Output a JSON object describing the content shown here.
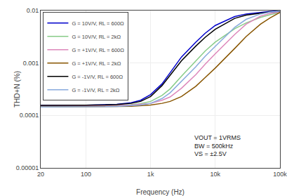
{
  "chart_data": {
    "type": "line",
    "title": "",
    "xlabel": "Frequency (Hz)",
    "ylabel": "THD+N (%)",
    "log": true,
    "grid": true,
    "legend": "upper left",
    "xlim": [
      20,
      100000
    ],
    "ylim": [
      1e-05,
      0.01
    ],
    "xticks": [
      20,
      100,
      {
        "value": 1000,
        "label": "1k"
      },
      {
        "value": 10000,
        "label": "10k"
      },
      {
        "value": 100000,
        "label": "100k"
      }
    ],
    "yticks": [
      1e-05,
      0.0001,
      0.001,
      0.01
    ],
    "annotations": [
      "VOUT = 1VRMS\nBW = 500kHz\nVS = ±2.5V"
    ],
    "x": [
      20,
      40,
      60,
      100,
      200,
      300,
      500,
      700,
      1000,
      1500,
      2000,
      3000,
      5000,
      7000,
      10000,
      20000,
      30000,
      50000,
      70000,
      100000
    ],
    "series": [
      {
        "name": "G = 10V/V, RL = 600Ω",
        "color": "#0000cc",
        "values": [
          0.000155,
          0.000155,
          0.000155,
          0.000157,
          0.00016,
          0.000163,
          0.000175,
          0.000195,
          0.00025,
          0.0004,
          0.00065,
          0.0013,
          0.0025,
          0.0037,
          0.0052,
          0.0077,
          0.0086,
          0.0093,
          0.0096,
          0.0099
        ]
      },
      {
        "name": "G = 10V/V, RL = 2kΩ",
        "color": "#88cc88",
        "values": [
          0.000148,
          0.000148,
          0.000148,
          0.00015,
          0.000152,
          0.000154,
          0.00016,
          0.000168,
          0.000185,
          0.00024,
          0.00032,
          0.00056,
          0.0011,
          0.0017,
          0.0025,
          0.0045,
          0.0058,
          0.0074,
          0.0083,
          0.0092
        ]
      },
      {
        "name": "G = +1V/V, RL = 600Ω",
        "color": "#dd88bb",
        "values": [
          0.000152,
          0.000152,
          0.000152,
          0.000153,
          0.000154,
          0.000155,
          0.000158,
          0.000162,
          0.00017,
          0.000195,
          0.000225,
          0.00033,
          0.0006,
          0.00095,
          0.0015,
          0.0035,
          0.0055,
          0.0078,
          0.0088,
          0.0095
        ]
      },
      {
        "name": "G = +1V/V, RL = 2kΩ",
        "color": "#885500",
        "values": [
          0.000145,
          0.000145,
          0.000145,
          0.000146,
          0.000147,
          0.000148,
          0.00015,
          0.000153,
          0.000158,
          0.00017,
          0.000185,
          0.00023,
          0.00036,
          0.00053,
          0.0008,
          0.0019,
          0.0032,
          0.0055,
          0.0072,
          0.0092
        ]
      },
      {
        "name": "G = -1V/V, RL = 600Ω",
        "color": "#000000",
        "values": [
          0.000155,
          0.000155,
          0.000155,
          0.000157,
          0.000159,
          0.000162,
          0.00017,
          0.000185,
          0.00023,
          0.00037,
          0.00058,
          0.0011,
          0.0021,
          0.0031,
          0.0044,
          0.0071,
          0.0082,
          0.009,
          0.0094,
          0.0097
        ]
      },
      {
        "name": "G = -1V/V, RL = 2kΩ",
        "color": "#88aadd",
        "values": [
          0.000145,
          0.000145,
          0.000145,
          0.000146,
          0.000147,
          0.000149,
          0.000153,
          0.000158,
          0.00017,
          0.00021,
          0.00027,
          0.00045,
          0.00085,
          0.00135,
          0.0021,
          0.0048,
          0.0068,
          0.0086,
          0.0093,
          0.0098
        ]
      }
    ]
  }
}
